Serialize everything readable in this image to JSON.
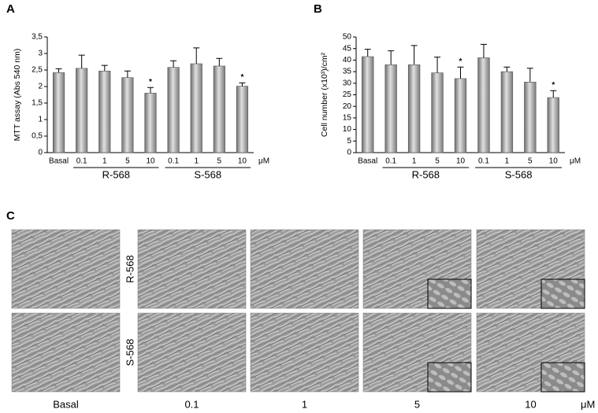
{
  "chart_data": [
    {
      "type": "bar",
      "panel_label": "A",
      "y_label": "MTT assay (Abs 540 nm)",
      "categories": [
        "Basal",
        "0.1",
        "1",
        "5",
        "10",
        "0.1",
        "1",
        "5",
        "10"
      ],
      "group_labels": [
        null,
        "R-568",
        "R-568",
        "R-568",
        "R-568",
        "S-568",
        "S-568",
        "S-568",
        "S-568"
      ],
      "x_unit": "μM",
      "values": [
        2.42,
        2.55,
        2.47,
        2.27,
        1.8,
        2.58,
        2.69,
        2.62,
        2.01
      ],
      "errors": [
        0.12,
        0.4,
        0.17,
        0.2,
        0.17,
        0.2,
        0.48,
        0.23,
        0.1
      ],
      "significance": [
        null,
        null,
        null,
        null,
        "*",
        null,
        null,
        null,
        "*"
      ],
      "color": "#9a9a9a",
      "ylim": [
        0,
        3.5
      ],
      "yticks": [
        0,
        {
          "value": 0.5,
          "label": "0,5"
        },
        1,
        {
          "value": 1.5,
          "label": "1,5"
        },
        2,
        {
          "value": 2.5,
          "label": "2,5"
        },
        3,
        {
          "value": 3.5,
          "label": "3,5"
        }
      ]
    },
    {
      "type": "bar",
      "panel_label": "B",
      "y_label": "Cell number (x10³)/cm²",
      "categories": [
        "Basal",
        "0.1",
        "1",
        "5",
        "10",
        "0.1",
        "1",
        "5",
        "10"
      ],
      "group_labels": [
        null,
        "R-568",
        "R-568",
        "R-568",
        "R-568",
        "S-568",
        "S-568",
        "S-568",
        "S-568"
      ],
      "x_unit": "μM",
      "values": [
        41.5,
        38,
        38,
        34.5,
        32,
        41,
        35,
        30.5,
        23.8
      ],
      "errors": [
        3.2,
        6,
        8.3,
        6.8,
        5,
        5.8,
        2,
        6,
        3
      ],
      "significance": [
        null,
        null,
        null,
        null,
        "*",
        null,
        null,
        null,
        "*"
      ],
      "color": "#9a9a9a",
      "ylim": [
        0,
        50
      ],
      "yticks": [
        0,
        5,
        10,
        15,
        20,
        25,
        30,
        35,
        40,
        45,
        50
      ]
    }
  ],
  "micrographs": {
    "panel_label": "C",
    "row_labels": [
      "R-568",
      "S-568"
    ],
    "column_labels": [
      "Basal",
      "0.1",
      "1",
      "5",
      "10"
    ],
    "unit": "μM"
  }
}
